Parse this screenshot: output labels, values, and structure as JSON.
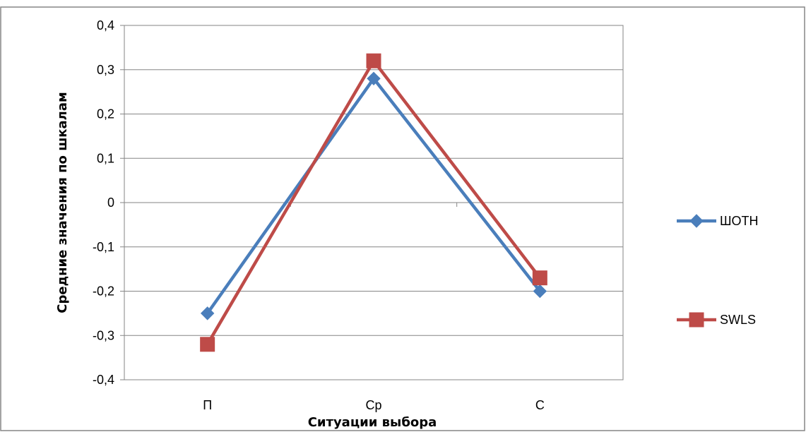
{
  "chart_data": {
    "type": "line",
    "categories": [
      "П",
      "Ср",
      "С"
    ],
    "series": [
      {
        "name": "ШОТН",
        "values": [
          -0.25,
          0.28,
          -0.2
        ],
        "color": "#4a7ebb",
        "marker": "diamond"
      },
      {
        "name": "SWLS",
        "values": [
          -0.32,
          0.32,
          -0.17
        ],
        "color": "#be4b48",
        "marker": "square"
      }
    ],
    "title": "",
    "xlabel": "Ситуации выбора",
    "ylabel": "Средние значения по шкалам",
    "ylim": [
      -0.4,
      0.4
    ],
    "yticks": [
      "-0,4",
      "-0,3",
      "-0,2",
      "-0,1",
      "0",
      "0,1",
      "0,2",
      "0,3",
      "0,4"
    ],
    "ytick_values": [
      -0.4,
      -0.3,
      -0.2,
      -0.1,
      0,
      0.1,
      0.2,
      0.3,
      0.4
    ],
    "grid": true,
    "legend": "right",
    "border_color": "#868686",
    "grid_color": "#868686"
  }
}
